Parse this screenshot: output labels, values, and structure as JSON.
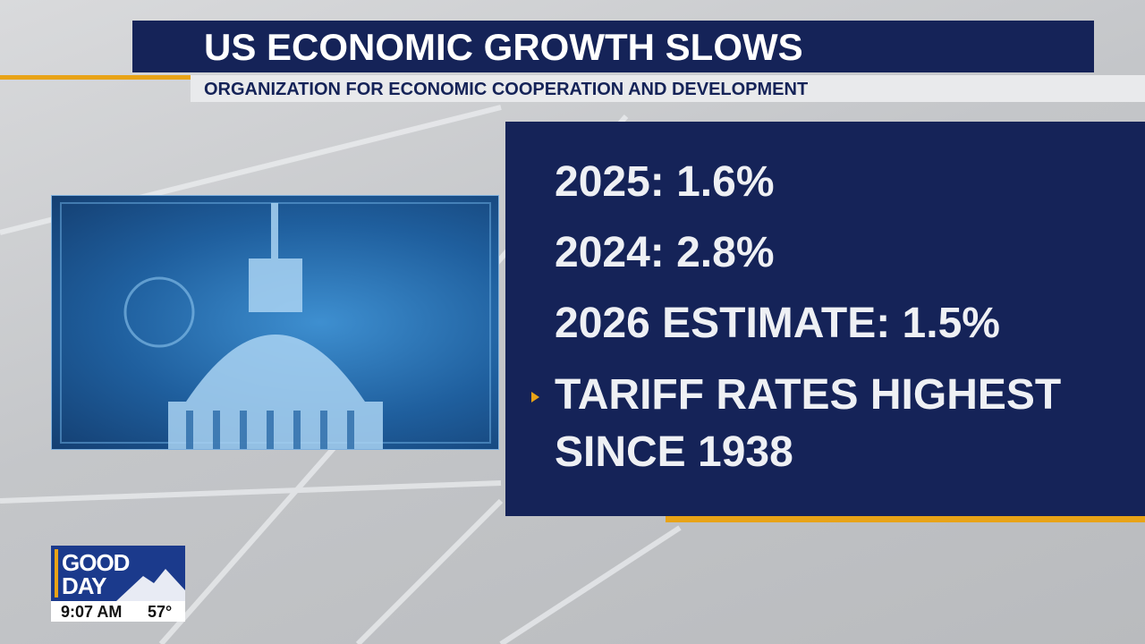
{
  "header": {
    "title": "US ECONOMIC GROWTH SLOWS",
    "subtitle": "ORGANIZATION FOR ECONOMIC COOPERATION AND DEVELOPMENT"
  },
  "panel": {
    "items": [
      "2025: 1.6%",
      "2024: 2.8%",
      "2026 ESTIMATE: 1.5%",
      "TARIFF RATES HIGHEST SINCE 1938"
    ]
  },
  "bug": {
    "logo": [
      "GOOD",
      "DAY"
    ],
    "time": "9:07 AM",
    "temperature": "57°"
  }
}
